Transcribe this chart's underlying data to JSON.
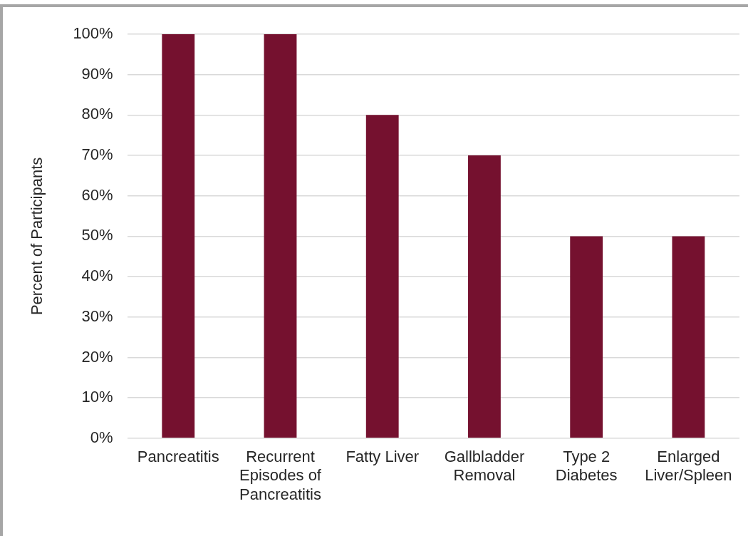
{
  "chart_data": {
    "type": "bar",
    "ylabel": "Percent of Participants",
    "categories": [
      "Pancreatitis",
      "Recurrent Episodes of Pancreatitis",
      "Fatty Liver",
      "Gallbladder Removal",
      "Type 2 Diabetes",
      "Enlarged Liver/Spleen"
    ],
    "values": [
      100,
      100,
      80,
      70,
      50,
      50
    ],
    "color": "#75112f",
    "ylim": [
      0,
      100
    ],
    "yticks": [
      {
        "value": 0,
        "label": "0%"
      },
      {
        "value": 10,
        "label": "10%"
      },
      {
        "value": 20,
        "label": "20%"
      },
      {
        "value": 30,
        "label": "30%"
      },
      {
        "value": 40,
        "label": "40%"
      },
      {
        "value": 50,
        "label": "50%"
      },
      {
        "value": 60,
        "label": "60%"
      },
      {
        "value": 70,
        "label": "70%"
      },
      {
        "value": 80,
        "label": "80%"
      },
      {
        "value": 90,
        "label": "90%"
      },
      {
        "value": 100,
        "label": "100%"
      }
    ],
    "grid": "y",
    "legend": false
  }
}
